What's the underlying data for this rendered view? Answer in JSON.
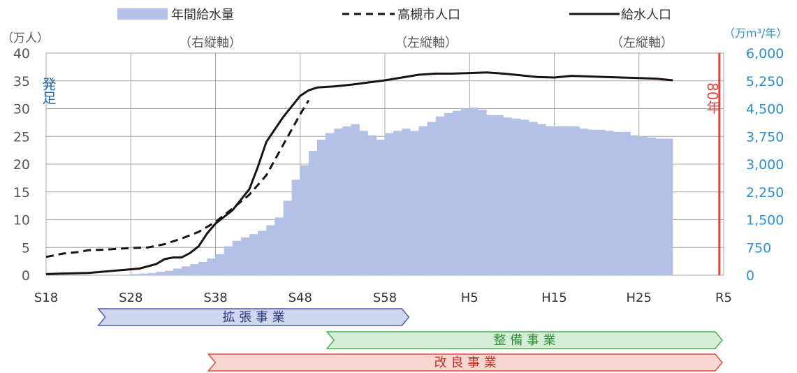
{
  "chart_data": {
    "type": "bar+line",
    "colors": {
      "bar": "#b4c1e6",
      "line": "#1a1212",
      "left_axis": "#595959",
      "right_axis": "#2f8fd0",
      "grid": "#a6a6a6",
      "marker": "#e0403a",
      "blue_text": "#2b6fb3"
    },
    "legend": [
      {
        "label": "年間給水量",
        "sub": "（右縦軸）",
        "style": "bar"
      },
      {
        "label": "高槻市人口",
        "sub": "（左縦軸）",
        "style": "dashed"
      },
      {
        "label": "給水人口",
        "sub": "（左縦軸）",
        "style": "solid"
      }
    ],
    "left_axis": {
      "unit": "（万人）",
      "min": 0,
      "max": 40,
      "ticks": [
        "0",
        "5",
        "10",
        "15",
        "20",
        "25",
        "30",
        "35",
        "40"
      ]
    },
    "right_axis": {
      "unit": "（万m³/年）",
      "min": 0,
      "max": 6000,
      "ticks": [
        "0",
        "750",
        "1,500",
        "2,250",
        "3,000",
        "3,750",
        "4,500",
        "5,250",
        "6,000"
      ]
    },
    "x_axis": {
      "ticks": [
        {
          "label": "S18",
          "year": 1943
        },
        {
          "label": "S28",
          "year": 1953
        },
        {
          "label": "S38",
          "year": 1963
        },
        {
          "label": "S48",
          "year": 1973
        },
        {
          "label": "S58",
          "year": 1983
        },
        {
          "label": "H5",
          "year": 1993
        },
        {
          "label": "H15",
          "year": 2003
        },
        {
          "label": "H25",
          "year": 2013
        },
        {
          "label": "R5",
          "year": 2023
        }
      ],
      "min_year": 1943,
      "max_year": 2023
    },
    "annual_supply": {
      "name": "年間給水量",
      "start_year": 1943,
      "values": [
        0,
        0,
        0,
        0,
        0,
        0,
        0,
        0,
        0,
        0,
        30,
        45,
        60,
        90,
        120,
        180,
        240,
        300,
        360,
        450,
        570,
        780,
        930,
        1020,
        1110,
        1200,
        1350,
        1560,
        2010,
        2580,
        2970,
        3360,
        3660,
        3840,
        3960,
        4020,
        4080,
        3900,
        3780,
        3660,
        3840,
        3900,
        3960,
        3900,
        4020,
        4140,
        4290,
        4380,
        4440,
        4500,
        4530,
        4470,
        4320,
        4320,
        4260,
        4230,
        4200,
        4140,
        4080,
        4020,
        4020,
        4020,
        4020,
        3960,
        3930,
        3930,
        3900,
        3870,
        3870,
        3780,
        3750,
        3720,
        3690,
        3690
      ]
    },
    "city_population": {
      "name": "高槻市人口",
      "points": [
        [
          1943,
          3.3
        ],
        [
          1945,
          3.9
        ],
        [
          1947,
          4.2
        ],
        [
          1948,
          4.5
        ],
        [
          1950,
          4.6
        ],
        [
          1953,
          4.9
        ],
        [
          1955,
          5.0
        ],
        [
          1957,
          5.6
        ],
        [
          1959,
          6.6
        ],
        [
          1961,
          7.8
        ],
        [
          1963,
          9.6
        ],
        [
          1965,
          12.0
        ],
        [
          1967,
          14.5
        ],
        [
          1969,
          18.0
        ],
        [
          1971,
          23.5
        ],
        [
          1973,
          29.0
        ],
        [
          1974,
          31.5
        ]
      ]
    },
    "served_population": {
      "name": "給水人口",
      "points": [
        [
          1943,
          0.2
        ],
        [
          1945,
          0.3
        ],
        [
          1948,
          0.4
        ],
        [
          1951,
          0.8
        ],
        [
          1954,
          1.2
        ],
        [
          1956,
          2.0
        ],
        [
          1957,
          2.9
        ],
        [
          1958,
          3.2
        ],
        [
          1959,
          3.2
        ],
        [
          1960,
          4.0
        ],
        [
          1961,
          5.2
        ],
        [
          1962,
          7.5
        ],
        [
          1963,
          9.3
        ],
        [
          1965,
          11.7
        ],
        [
          1967,
          15.5
        ],
        [
          1968,
          19.5
        ],
        [
          1969,
          24.0
        ],
        [
          1971,
          28.5
        ],
        [
          1973,
          32.3
        ],
        [
          1974,
          33.3
        ],
        [
          1975,
          33.8
        ],
        [
          1977,
          34.0
        ],
        [
          1979,
          34.3
        ],
        [
          1981,
          34.7
        ],
        [
          1983,
          35.1
        ],
        [
          1985,
          35.6
        ],
        [
          1987,
          36.1
        ],
        [
          1989,
          36.3
        ],
        [
          1991,
          36.3
        ],
        [
          1993,
          36.4
        ],
        [
          1995,
          36.5
        ],
        [
          1997,
          36.3
        ],
        [
          1999,
          36.0
        ],
        [
          2001,
          35.7
        ],
        [
          2003,
          35.6
        ],
        [
          2005,
          35.9
        ],
        [
          2007,
          35.8
        ],
        [
          2009,
          35.7
        ],
        [
          2011,
          35.6
        ],
        [
          2013,
          35.5
        ],
        [
          2015,
          35.4
        ],
        [
          2017,
          35.1
        ]
      ]
    },
    "markers": {
      "start_label": "発足",
      "end_label": "80年",
      "end_year": 2022
    },
    "phases": [
      {
        "label": "拡 張 事 業",
        "start_year": 1949,
        "end_year": 1986,
        "fill": "#d0d6ee",
        "stroke": "#4a5fa8",
        "text_color": "#2b3a7a"
      },
      {
        "label": "整 備 事 業",
        "start_year": 1976,
        "end_year": 2023,
        "fill": "#d5efd6",
        "stroke": "#4caf50",
        "text_color": "#2f8f37"
      },
      {
        "label": "改 良 事 業",
        "start_year": 1962,
        "end_year": 2023,
        "fill": "#f6d7d2",
        "stroke": "#e04a3a",
        "text_color": "#c62f22"
      }
    ]
  }
}
